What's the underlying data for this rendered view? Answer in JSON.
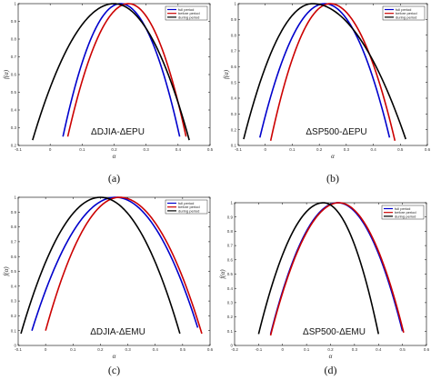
{
  "colors": {
    "full_period": "#0000cc",
    "before_period": "#cc0000",
    "during_period": "#000000"
  },
  "chart_data": [
    {
      "type": "line",
      "caption": "(a)",
      "title": "ΔDJIA-ΔEPU",
      "xlabel": "α",
      "ylabel": "f(α)",
      "xlim": [
        -0.1,
        0.5
      ],
      "ylim": [
        0.2,
        1.0
      ],
      "xticks": [
        "-0.1",
        "0",
        "0.1",
        "0.2",
        "0.3",
        "0.4",
        "0.5"
      ],
      "yticks": [
        "0.2",
        "0.3",
        "0.4",
        "0.5",
        "0.6",
        "0.7",
        "0.8",
        "0.9",
        "1"
      ],
      "legend_position": "top-right",
      "series": [
        {
          "name": "full period",
          "color": "#0000cc",
          "alpha_min": 0.04,
          "alpha_peak": 0.22,
          "alpha_max": 0.405,
          "f_left": 0.25,
          "f_right": 0.25
        },
        {
          "name": "before period",
          "color": "#cc0000",
          "alpha_min": 0.055,
          "alpha_peak": 0.245,
          "alpha_max": 0.425,
          "f_left": 0.25,
          "f_right": 0.25
        },
        {
          "name": "during period",
          "color": "#000000",
          "alpha_min": -0.055,
          "alpha_peak": 0.2,
          "alpha_max": 0.435,
          "f_left": 0.23,
          "f_right": 0.23
        }
      ]
    },
    {
      "type": "line",
      "caption": "(b)",
      "title": "ΔSP500-ΔEPU",
      "xlabel": "α",
      "ylabel": "f(α)",
      "xlim": [
        -0.1,
        0.6
      ],
      "ylim": [
        0.1,
        1.0
      ],
      "xticks": [
        "-0.1",
        "0",
        "0.1",
        "0.2",
        "0.3",
        "0.4",
        "0.5",
        "0.6"
      ],
      "yticks": [
        "0.1",
        "0.2",
        "0.3",
        "0.4",
        "0.5",
        "0.6",
        "0.7",
        "0.8",
        "0.9",
        "1"
      ],
      "legend_position": "top-right",
      "series": [
        {
          "name": "full period",
          "color": "#0000cc",
          "alpha_min": -0.02,
          "alpha_peak": 0.22,
          "alpha_max": 0.46,
          "f_left": 0.15,
          "f_right": 0.15
        },
        {
          "name": "before period",
          "color": "#cc0000",
          "alpha_min": 0.02,
          "alpha_peak": 0.24,
          "alpha_max": 0.48,
          "f_left": 0.13,
          "f_right": 0.13
        },
        {
          "name": "during period",
          "color": "#000000",
          "alpha_min": -0.08,
          "alpha_peak": 0.175,
          "alpha_max": 0.52,
          "f_left": 0.14,
          "f_right": 0.14
        }
      ]
    },
    {
      "type": "line",
      "caption": "(c)",
      "title": "ΔDJIA-ΔEMU",
      "xlabel": "α",
      "ylabel": "f(α)",
      "xlim": [
        -0.1,
        0.6
      ],
      "ylim": [
        0.0,
        1.0
      ],
      "xticks": [
        "-0.1",
        "0",
        "0.1",
        "0.2",
        "0.3",
        "0.4",
        "0.5",
        "0.6"
      ],
      "yticks": [
        "0",
        "0.1",
        "0.2",
        "0.3",
        "0.4",
        "0.5",
        "0.6",
        "0.7",
        "0.8",
        "0.9",
        "1"
      ],
      "legend_position": "top-right",
      "series": [
        {
          "name": "full period",
          "color": "#0000cc",
          "alpha_min": -0.05,
          "alpha_peak": 0.255,
          "alpha_max": 0.555,
          "f_left": 0.1,
          "f_right": 0.12
        },
        {
          "name": "before period",
          "color": "#cc0000",
          "alpha_min": 0.0,
          "alpha_peak": 0.27,
          "alpha_max": 0.57,
          "f_left": 0.1,
          "f_right": 0.08
        },
        {
          "name": "during period",
          "color": "#000000",
          "alpha_min": -0.09,
          "alpha_peak": 0.2,
          "alpha_max": 0.49,
          "f_left": 0.08,
          "f_right": 0.08
        }
      ]
    },
    {
      "type": "line",
      "caption": "(d)",
      "title": "ΔSP500-ΔEMU",
      "xlabel": "α",
      "ylabel": "f(α)",
      "xlim": [
        -0.2,
        0.6
      ],
      "ylim": [
        0.0,
        1.0
      ],
      "xticks": [
        "-0.2",
        "-0.1",
        "0",
        "0.1",
        "0.2",
        "0.3",
        "0.4",
        "0.5",
        "0.6"
      ],
      "yticks": [
        "0",
        "0.1",
        "0.2",
        "0.3",
        "0.4",
        "0.5",
        "0.6",
        "0.7",
        "0.8",
        "0.9",
        "1"
      ],
      "legend_position": "top-right",
      "series": [
        {
          "name": "full period",
          "color": "#0000cc",
          "alpha_min": -0.05,
          "alpha_peak": 0.23,
          "alpha_max": 0.5,
          "f_left": 0.08,
          "f_right": 0.1
        },
        {
          "name": "before period",
          "color": "#cc0000",
          "alpha_min": -0.05,
          "alpha_peak": 0.235,
          "alpha_max": 0.505,
          "f_left": 0.07,
          "f_right": 0.09
        },
        {
          "name": "during period",
          "color": "#000000",
          "alpha_min": -0.1,
          "alpha_peak": 0.17,
          "alpha_max": 0.4,
          "f_left": 0.08,
          "f_right": 0.08
        }
      ]
    }
  ]
}
